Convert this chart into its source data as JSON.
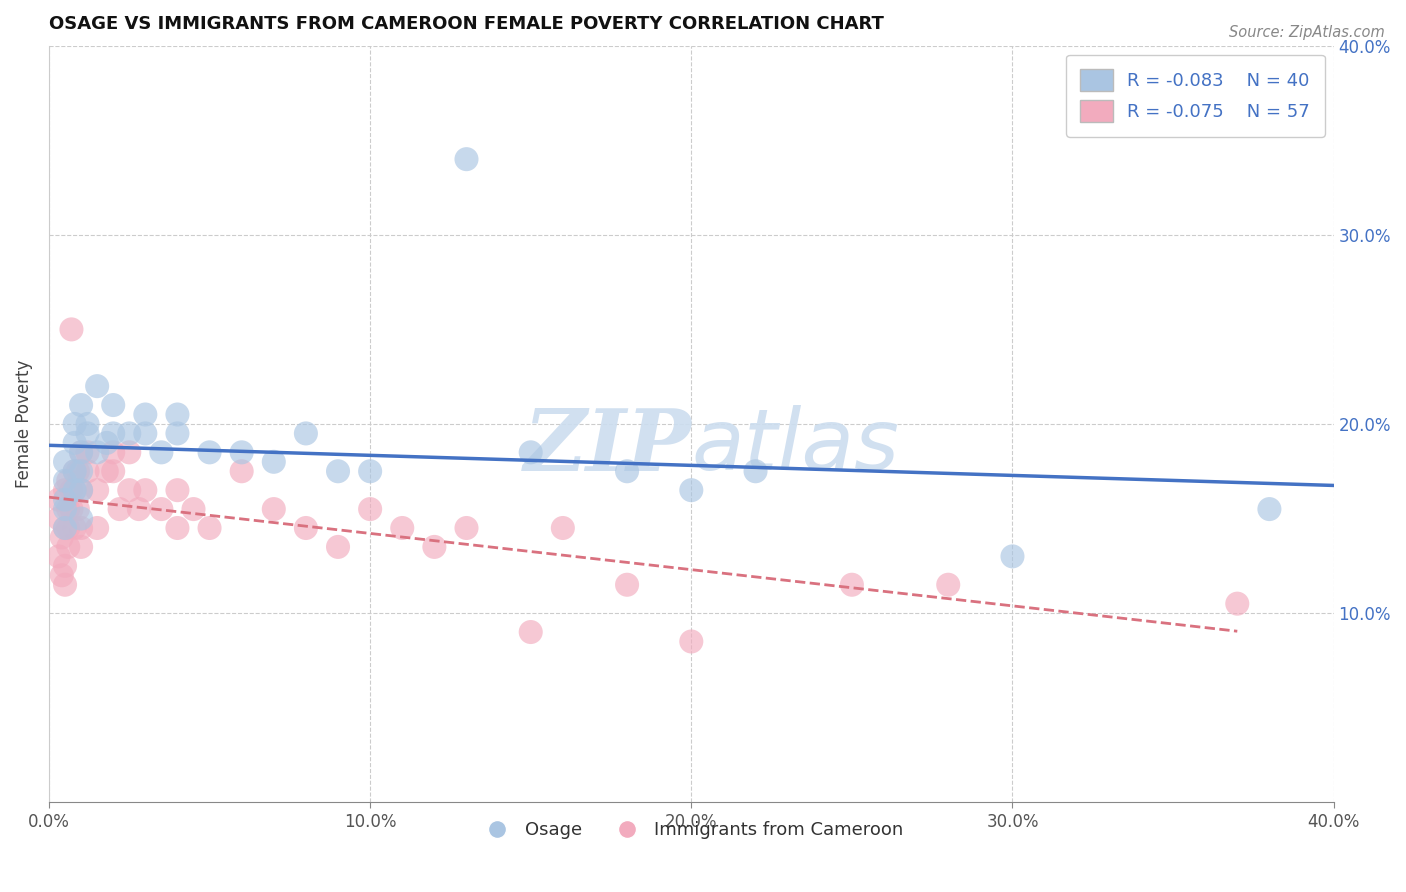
{
  "title": "OSAGE VS IMMIGRANTS FROM CAMEROON FEMALE POVERTY CORRELATION CHART",
  "source_text": "Source: ZipAtlas.com",
  "xlabel": "",
  "ylabel": "Female Poverty",
  "legend_label1": "Osage",
  "legend_label2": "Immigrants from Cameroon",
  "R1": -0.083,
  "N1": 40,
  "R2": -0.075,
  "N2": 57,
  "xlim": [
    0.0,
    0.4
  ],
  "ylim": [
    0.0,
    0.4
  ],
  "xticks": [
    0.0,
    0.1,
    0.2,
    0.3,
    0.4
  ],
  "yticks": [
    0.1,
    0.2,
    0.3,
    0.4
  ],
  "xtick_labels": [
    "0.0%",
    "10.0%",
    "20.0%",
    "30.0%",
    "40.0%"
  ],
  "ytick_labels": [
    "10.0%",
    "20.0%",
    "30.0%",
    "40.0%"
  ],
  "color1": "#aac5e2",
  "color2": "#f2abbe",
  "line_color1": "#4472c4",
  "line_color2": "#d9717f",
  "watermark_color": "#ccddef",
  "osage_x": [
    0.005,
    0.005,
    0.005,
    0.005,
    0.005,
    0.008,
    0.008,
    0.008,
    0.008,
    0.01,
    0.01,
    0.01,
    0.01,
    0.01,
    0.012,
    0.012,
    0.015,
    0.015,
    0.018,
    0.02,
    0.02,
    0.025,
    0.03,
    0.03,
    0.035,
    0.04,
    0.04,
    0.05,
    0.06,
    0.07,
    0.08,
    0.09,
    0.1,
    0.13,
    0.15,
    0.18,
    0.2,
    0.22,
    0.3,
    0.38
  ],
  "osage_y": [
    0.16,
    0.17,
    0.18,
    0.155,
    0.145,
    0.2,
    0.19,
    0.175,
    0.165,
    0.21,
    0.185,
    0.175,
    0.165,
    0.15,
    0.2,
    0.195,
    0.22,
    0.185,
    0.19,
    0.21,
    0.195,
    0.195,
    0.205,
    0.195,
    0.185,
    0.205,
    0.195,
    0.185,
    0.185,
    0.18,
    0.195,
    0.175,
    0.175,
    0.34,
    0.185,
    0.175,
    0.165,
    0.175,
    0.13,
    0.155
  ],
  "cameroon_x": [
    0.003,
    0.003,
    0.003,
    0.004,
    0.004,
    0.005,
    0.005,
    0.005,
    0.005,
    0.006,
    0.006,
    0.006,
    0.006,
    0.007,
    0.007,
    0.007,
    0.008,
    0.008,
    0.008,
    0.009,
    0.009,
    0.01,
    0.01,
    0.01,
    0.01,
    0.012,
    0.012,
    0.015,
    0.015,
    0.018,
    0.02,
    0.02,
    0.022,
    0.025,
    0.025,
    0.028,
    0.03,
    0.035,
    0.04,
    0.04,
    0.045,
    0.05,
    0.06,
    0.07,
    0.08,
    0.09,
    0.1,
    0.11,
    0.12,
    0.13,
    0.15,
    0.16,
    0.18,
    0.2,
    0.25,
    0.28,
    0.37
  ],
  "cameroon_y": [
    0.15,
    0.13,
    0.16,
    0.14,
    0.12,
    0.165,
    0.145,
    0.125,
    0.115,
    0.17,
    0.155,
    0.145,
    0.135,
    0.25,
    0.165,
    0.155,
    0.175,
    0.165,
    0.145,
    0.175,
    0.155,
    0.185,
    0.165,
    0.145,
    0.135,
    0.185,
    0.175,
    0.165,
    0.145,
    0.175,
    0.185,
    0.175,
    0.155,
    0.185,
    0.165,
    0.155,
    0.165,
    0.155,
    0.165,
    0.145,
    0.155,
    0.145,
    0.175,
    0.155,
    0.145,
    0.135,
    0.155,
    0.145,
    0.135,
    0.145,
    0.09,
    0.145,
    0.115,
    0.085,
    0.115,
    0.115,
    0.105
  ]
}
